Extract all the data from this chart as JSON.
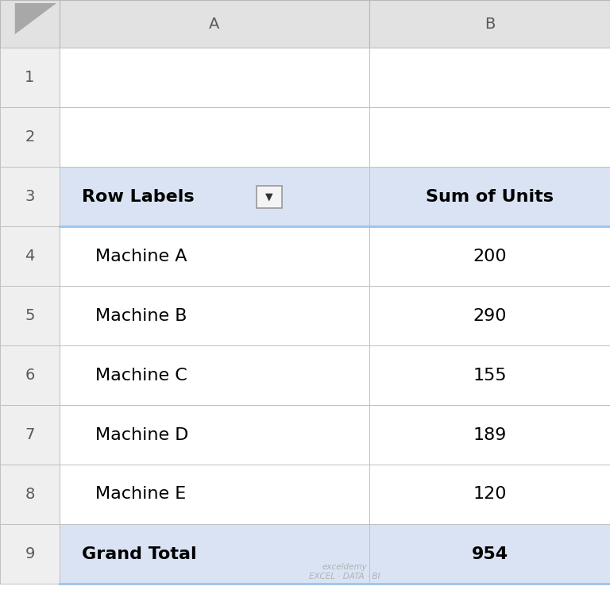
{
  "col_headers": [
    "A",
    "B"
  ],
  "row_numbers": [
    "1",
    "2",
    "3",
    "4",
    "5",
    "6",
    "7",
    "8",
    "9"
  ],
  "header_row": {
    "col_a": "Row Labels",
    "col_b": "Sum of Units"
  },
  "data_rows": [
    {
      "label": "Machine A",
      "value": "200"
    },
    {
      "label": "Machine B",
      "value": "290"
    },
    {
      "label": "Machine C",
      "value": "155"
    },
    {
      "label": "Machine D",
      "value": "189"
    },
    {
      "label": "Machine E",
      "value": "120"
    }
  ],
  "grand_total": {
    "label": "Grand Total",
    "value": "954"
  },
  "bg_color": "#ffffff",
  "header_bg": "#dae3f3",
  "grand_total_bg": "#dae3f3",
  "grid_color": "#c0c0c0",
  "corner_color": "#e2e2e2",
  "row_num_bg": "#efefef",
  "col_header_bg": "#e2e2e2",
  "text_color": "#000000",
  "figure_bg": "#ffffff",
  "col_header_text_color": "#595959",
  "row_num_text_color": "#595959",
  "accent_line_color": "#9dc3e6",
  "watermark_color": "#aaaaaa"
}
